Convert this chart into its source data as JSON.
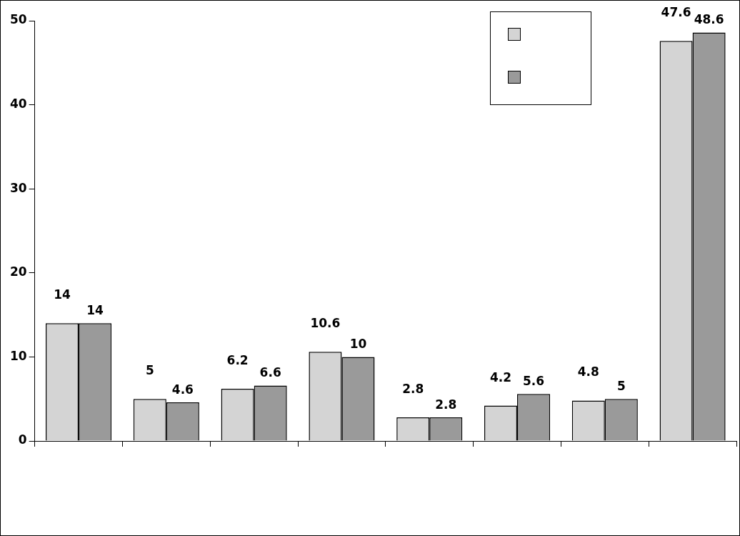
{
  "chart_data": {
    "type": "bar",
    "categories": [
      null,
      null,
      null,
      null,
      null,
      null,
      null,
      null
    ],
    "series": [
      {
        "color": "#d4d4d4",
        "values": [
          14,
          5,
          6.2,
          10.6,
          2.8,
          4.2,
          4.8,
          47.6
        ]
      },
      {
        "color": "#9a9a9a",
        "values": [
          14,
          4.6,
          6.6,
          10,
          2.8,
          5.6,
          5,
          48.6
        ]
      }
    ],
    "ylim": [
      0,
      50
    ],
    "yticks": [
      0,
      10,
      20,
      30,
      40,
      50
    ],
    "grid": false,
    "data_labels": true
  }
}
